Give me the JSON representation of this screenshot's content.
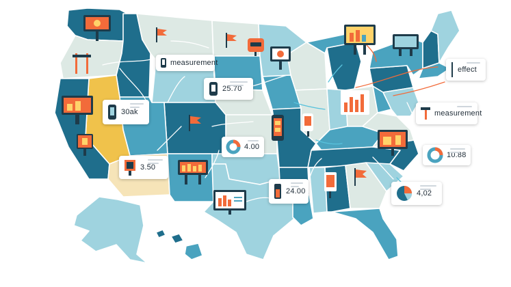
{
  "map": {
    "colors": {
      "dark_teal": "#1f6e8c",
      "mid_teal": "#4aa3bf",
      "light_teal": "#9fd3df",
      "pale": "#dde9e4",
      "mustard": "#f0c24b",
      "cream": "#f6e4b8",
      "accent_orange": "#f26b3a",
      "arrow_white": "#ffffff",
      "arrow_orange": "#f26b3a",
      "arrow_blue": "#58c2dc"
    }
  },
  "cards": [
    {
      "id": "measurement-nw",
      "text": "measurement",
      "icon": "battery-meter-icon"
    },
    {
      "id": "value-2570",
      "text": "25.70",
      "icon": "battery-meter-icon"
    },
    {
      "id": "value-30ak",
      "text": "30ak",
      "icon": "battery-meter-icon"
    },
    {
      "id": "value-400",
      "text": "4.00",
      "icon": "donut-chart-icon"
    },
    {
      "id": "value-350",
      "text": "3.50",
      "icon": "billboard-icon"
    },
    {
      "id": "value-2400",
      "text": "24.00",
      "icon": "battery-meter-icon"
    },
    {
      "id": "effect-ne",
      "text": "effect",
      "icon": "thermometer-icon"
    },
    {
      "id": "measurement-e",
      "text": "measurement",
      "icon": "signpost-icon"
    },
    {
      "id": "value-1088",
      "text": "10.88",
      "icon": "donut-chart-icon"
    },
    {
      "id": "value-402",
      "text": "4,02",
      "icon": "pie-chart-icon"
    }
  ],
  "markers": [
    {
      "id": "billboard-pnw",
      "icon": "billboard-icon"
    },
    {
      "id": "flag-montana",
      "icon": "flag-icon"
    },
    {
      "id": "flag-dakota",
      "icon": "flag-icon"
    },
    {
      "id": "sign-minnesota",
      "icon": "sign-icon"
    },
    {
      "id": "signpost-oregon",
      "icon": "signpost-icon"
    },
    {
      "id": "billboard-california",
      "icon": "billboard-icon"
    },
    {
      "id": "billboard-nevada",
      "icon": "billboard-icon"
    },
    {
      "id": "flag-colorado",
      "icon": "flag-icon"
    },
    {
      "id": "billboard-new-mexico",
      "icon": "billboard-icon"
    },
    {
      "id": "billboard-great-lakes",
      "icon": "billboard-icon"
    },
    {
      "id": "billboard-michigan",
      "icon": "billboard-icon"
    },
    {
      "id": "billboard-new-england",
      "icon": "billboard-icon"
    },
    {
      "id": "billboard-new-york",
      "icon": "billboard-icon"
    },
    {
      "id": "bar-chart-ohio",
      "icon": "bar-chart-icon"
    },
    {
      "id": "billboard-carolina",
      "icon": "billboard-icon"
    },
    {
      "id": "phone-kansas",
      "icon": "phone-icon"
    },
    {
      "id": "sign-missouri",
      "icon": "sign-icon"
    },
    {
      "id": "sign-mississippi",
      "icon": "sign-icon"
    },
    {
      "id": "flag-georgia",
      "icon": "flag-icon"
    },
    {
      "id": "monitor-texas",
      "icon": "monitor-icon"
    }
  ]
}
